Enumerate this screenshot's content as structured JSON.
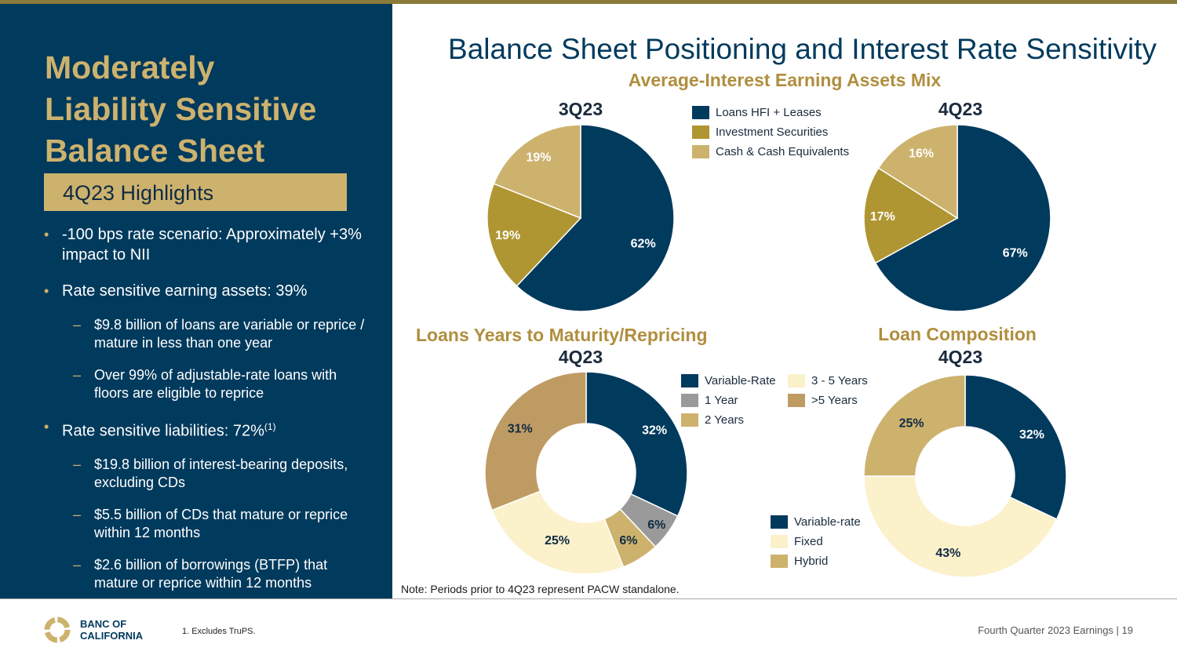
{
  "colors": {
    "navy": "#003a5d",
    "olive": "#b09632",
    "tan": "#cdb26e",
    "gray": "#9a9a9a",
    "cream": "#fbf1cb",
    "brown": "#bf9b64"
  },
  "sidebar": {
    "title_lines": [
      "Moderately",
      "Liability Sensitive",
      "Balance Sheet"
    ],
    "highlights_label": "4Q23 Highlights",
    "bullet1": "-100 bps rate scenario: Approximately +3% impact to NII",
    "bullet2": "Rate sensitive earning assets: 39%",
    "sub2a": "$9.8 billion of loans are variable or reprice / mature in less than one year",
    "sub2b": "Over 99% of adjustable-rate loans with floors are eligible to reprice",
    "bullet3": "Rate sensitive liabilities: 72%",
    "bullet3_sup": "(1)",
    "sub3a": "$19.8 billion of interest-bearing deposits, excluding CDs",
    "sub3b": "$5.5 billion of CDs that mature or reprice within 12 months",
    "sub3c": "$2.6 billion of borrowings (BTFP) that mature or reprice within 12 months"
  },
  "main_title": "Balance Sheet Positioning and Interest Rate Sensitivity",
  "note": "Note: Periods prior to 4Q23 represent PACW standalone.",
  "footer": {
    "logo_line1": "BANC OF",
    "logo_line2": "CALIFORNIA",
    "footnote": "1.  Excludes TruPS.",
    "right_text": "Fourth Quarter 2023 Earnings |  19"
  },
  "chart_data": [
    {
      "type": "pie",
      "title": "Average-Interest Earning Assets Mix",
      "period": "3Q23",
      "categories": [
        "Loans HFI + Leases",
        "Investment Securities",
        "Cash & Cash Equivalents"
      ],
      "values": [
        62,
        19,
        19
      ],
      "labels": [
        "62%",
        "19%",
        "19%"
      ],
      "colors": [
        "#003a5d",
        "#b09632",
        "#cdb26e"
      ],
      "legend": "right"
    },
    {
      "type": "pie",
      "title": "Average-Interest Earning Assets Mix",
      "period": "4Q23",
      "categories": [
        "Loans HFI + Leases",
        "Investment Securities",
        "Cash & Cash Equivalents"
      ],
      "values": [
        67,
        17,
        16
      ],
      "labels": [
        "67%",
        "17%",
        "16%"
      ],
      "colors": [
        "#003a5d",
        "#b09632",
        "#cdb26e"
      ]
    },
    {
      "type": "donut",
      "title": "Loans Years to Maturity/Repricing",
      "period": "4Q23",
      "categories": [
        "Variable-Rate",
        "1 Year",
        "2 Years",
        "3 - 5 Years",
        ">5 Years"
      ],
      "values": [
        32,
        6,
        6,
        25,
        31
      ],
      "labels": [
        "32%",
        "6%",
        "6%",
        "25%",
        "31%"
      ],
      "colors": [
        "#003a5d",
        "#9a9a9a",
        "#cdb26e",
        "#fbf1cb",
        "#bf9b64"
      ],
      "legend": "right"
    },
    {
      "type": "donut",
      "title": "Loan Composition",
      "period": "4Q23",
      "categories": [
        "Variable-rate",
        "Fixed",
        "Hybrid"
      ],
      "values": [
        32,
        43,
        25
      ],
      "labels": [
        "32%",
        "43%",
        "25%"
      ],
      "colors": [
        "#003a5d",
        "#fbf1cb",
        "#cdb26e"
      ],
      "legend": "left"
    }
  ]
}
